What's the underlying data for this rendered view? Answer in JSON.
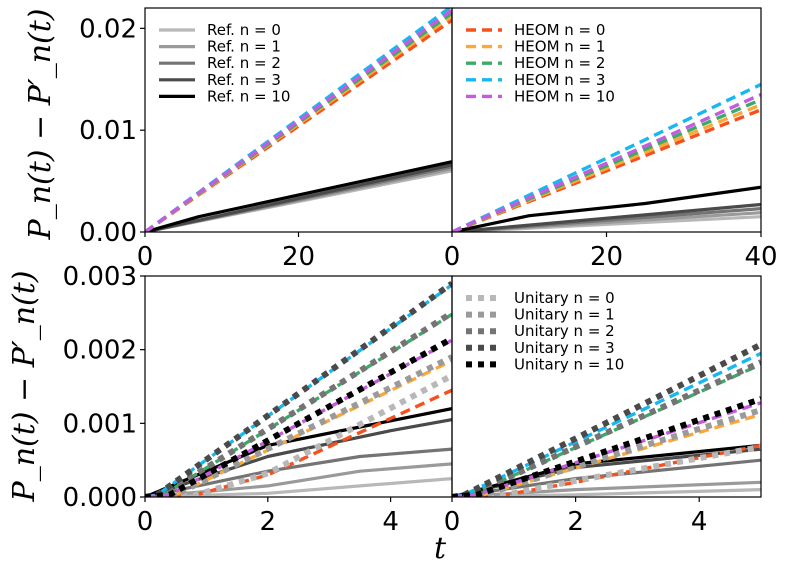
{
  "figure": {
    "ylabel": "P_n(t) − P′_n(t)",
    "xlabel": "t"
  },
  "legends": {
    "ref": [
      {
        "label": "Ref. n = 0",
        "color": "#b8b8b8"
      },
      {
        "label": "Ref. n = 1",
        "color": "#9a9a9a"
      },
      {
        "label": "Ref. n = 2",
        "color": "#747474"
      },
      {
        "label": "Ref. n = 3",
        "color": "#4a4a4a"
      },
      {
        "label": "Ref. n = 10",
        "color": "#000000"
      }
    ],
    "heom": [
      {
        "label": "HEOM n = 0",
        "color": "#f5511e"
      },
      {
        "label": "HEOM n = 1",
        "color": "#f9a83a"
      },
      {
        "label": "HEOM n = 2",
        "color": "#3daa6a"
      },
      {
        "label": "HEOM n = 3",
        "color": "#17b8f2"
      },
      {
        "label": "HEOM n = 10",
        "color": "#c35ddc"
      }
    ],
    "unitary": [
      {
        "label": "Unitary n = 0",
        "color": "#b8b8b8"
      },
      {
        "label": "Unitary n = 1",
        "color": "#9a9a9a"
      },
      {
        "label": "Unitary n = 2",
        "color": "#747474"
      },
      {
        "label": "Unitary n = 3",
        "color": "#4a4a4a"
      },
      {
        "label": "Unitary n = 10",
        "color": "#000000"
      }
    ]
  },
  "chart_data": [
    {
      "type": "line",
      "panel": "top-left",
      "xlim": [
        0,
        40
      ],
      "ylim": [
        0,
        0.022
      ],
      "xticks": [
        "0",
        "20"
      ],
      "yticks": [
        "0.00",
        "0.01",
        "0.02"
      ],
      "legend": "ref",
      "legend_position": "top-left",
      "series": [
        {
          "name": "Ref. n = 0",
          "style": "solid",
          "x": [
            0,
            40
          ],
          "y": [
            0,
            0.006
          ]
        },
        {
          "name": "Ref. n = 1",
          "style": "solid",
          "x": [
            0,
            40
          ],
          "y": [
            0,
            0.0062
          ]
        },
        {
          "name": "Ref. n = 2",
          "style": "solid",
          "x": [
            0,
            40
          ],
          "y": [
            0,
            0.0064
          ]
        },
        {
          "name": "Ref. n = 3",
          "style": "solid",
          "x": [
            0,
            40
          ],
          "y": [
            0,
            0.0066
          ]
        },
        {
          "name": "Ref. n = 10",
          "style": "solid",
          "x": [
            0,
            7,
            40
          ],
          "y": [
            0,
            0.0015,
            0.0069
          ]
        },
        {
          "name": "HEOM n = 0",
          "style": "dashed",
          "x": [
            0,
            40
          ],
          "y": [
            0,
            0.0208
          ]
        },
        {
          "name": "HEOM n = 1",
          "style": "dashed",
          "x": [
            0,
            40
          ],
          "y": [
            0,
            0.0212
          ]
        },
        {
          "name": "HEOM n = 2",
          "style": "dashed",
          "x": [
            0,
            40
          ],
          "y": [
            0,
            0.0215
          ]
        },
        {
          "name": "HEOM n = 3",
          "style": "dashed",
          "x": [
            0,
            40
          ],
          "y": [
            0,
            0.0222
          ]
        },
        {
          "name": "HEOM n = 10",
          "style": "dashed",
          "x": [
            0,
            40
          ],
          "y": [
            0,
            0.0218
          ]
        }
      ]
    },
    {
      "type": "line",
      "panel": "top-right",
      "xlim": [
        0,
        40
      ],
      "ylim": [
        0,
        0.022
      ],
      "xticks": [
        "0",
        "20",
        "40"
      ],
      "yticks": [],
      "legend": "heom",
      "legend_position": "top-left",
      "series": [
        {
          "name": "Ref. n = 0",
          "style": "solid",
          "x": [
            0,
            40
          ],
          "y": [
            0,
            0.0015
          ]
        },
        {
          "name": "Ref. n = 1",
          "style": "solid",
          "x": [
            0,
            40
          ],
          "y": [
            0,
            0.0019
          ]
        },
        {
          "name": "Ref. n = 2",
          "style": "solid",
          "x": [
            0,
            40
          ],
          "y": [
            0,
            0.0023
          ]
        },
        {
          "name": "Ref. n = 3",
          "style": "solid",
          "x": [
            0,
            40
          ],
          "y": [
            0,
            0.0027
          ]
        },
        {
          "name": "Ref. n = 10",
          "style": "solid",
          "x": [
            0,
            10,
            25,
            40
          ],
          "y": [
            0,
            0.0016,
            0.0028,
            0.0044
          ]
        },
        {
          "name": "HEOM n = 0",
          "style": "dashed",
          "x": [
            0,
            40
          ],
          "y": [
            0,
            0.012
          ]
        },
        {
          "name": "HEOM n = 1",
          "style": "dashed",
          "x": [
            0,
            40
          ],
          "y": [
            0,
            0.0125
          ]
        },
        {
          "name": "HEOM n = 2",
          "style": "dashed",
          "x": [
            0,
            40
          ],
          "y": [
            0,
            0.013
          ]
        },
        {
          "name": "HEOM n = 3",
          "style": "dashed",
          "x": [
            0,
            40
          ],
          "y": [
            0,
            0.0145
          ]
        },
        {
          "name": "HEOM n = 10",
          "style": "dashed",
          "x": [
            0,
            40
          ],
          "y": [
            0,
            0.0135
          ]
        }
      ]
    },
    {
      "type": "line",
      "panel": "bottom-left",
      "xlim": [
        0,
        5
      ],
      "ylim": [
        0,
        0.003
      ],
      "xticks": [
        "0",
        "2",
        "4"
      ],
      "yticks": [
        "0.000",
        "0.001",
        "0.002",
        "0.003"
      ],
      "legend": "none",
      "series": [
        {
          "name": "Ref. n = 0",
          "style": "solid",
          "x": [
            0,
            2,
            3.5,
            5
          ],
          "y": [
            0,
            5e-05,
            0.00015,
            0.00025
          ]
        },
        {
          "name": "Ref. n = 1",
          "style": "solid",
          "x": [
            0,
            2,
            3.5,
            5
          ],
          "y": [
            0,
            0.00015,
            0.00035,
            0.00045
          ]
        },
        {
          "name": "Ref. n = 2",
          "style": "solid",
          "x": [
            0,
            2,
            3.5,
            5
          ],
          "y": [
            0,
            0.00035,
            0.00055,
            0.00065
          ]
        },
        {
          "name": "Ref. n = 3",
          "style": "solid",
          "x": [
            0,
            2,
            4,
            5
          ],
          "y": [
            0,
            0.00055,
            0.0009,
            0.00105
          ]
        },
        {
          "name": "Ref. n = 10",
          "style": "solid",
          "x": [
            0,
            2,
            3.5,
            5
          ],
          "y": [
            0,
            0.0007,
            0.00095,
            0.0012
          ]
        },
        {
          "name": "HEOM n = 0",
          "style": "dashed",
          "x": [
            0,
            0.8,
            2,
            5
          ],
          "y": [
            0,
            2e-05,
            0.0003,
            0.00145
          ]
        },
        {
          "name": "HEOM n = 1",
          "style": "dashed",
          "x": [
            0,
            0.5,
            5
          ],
          "y": [
            0,
            3e-05,
            0.00185
          ]
        },
        {
          "name": "HEOM n = 2",
          "style": "dashed",
          "x": [
            0,
            0.3,
            5
          ],
          "y": [
            0,
            3e-05,
            0.00248
          ]
        },
        {
          "name": "HEOM n = 3",
          "style": "dashed",
          "x": [
            0,
            0.2,
            5
          ],
          "y": [
            0,
            3e-05,
            0.00288
          ]
        },
        {
          "name": "HEOM n = 10",
          "style": "dashed",
          "x": [
            0,
            0.4,
            5
          ],
          "y": [
            0,
            3e-05,
            0.00213
          ]
        },
        {
          "name": "Unitary n = 0",
          "style": "dotted",
          "x": [
            0,
            0.8,
            2,
            5
          ],
          "y": [
            0,
            2e-05,
            0.00032,
            0.00165
          ]
        },
        {
          "name": "Unitary n = 1",
          "style": "dotted",
          "x": [
            0,
            0.5,
            5
          ],
          "y": [
            0,
            3e-05,
            0.0019
          ]
        },
        {
          "name": "Unitary n = 2",
          "style": "dotted",
          "x": [
            0,
            0.3,
            5
          ],
          "y": [
            0,
            3e-05,
            0.0025
          ]
        },
        {
          "name": "Unitary n = 3",
          "style": "dotted",
          "x": [
            0,
            0.2,
            5
          ],
          "y": [
            0,
            3e-05,
            0.0029
          ]
        },
        {
          "name": "Unitary n = 10",
          "style": "dotted",
          "x": [
            0,
            0.4,
            5
          ],
          "y": [
            0,
            3e-05,
            0.00215
          ]
        }
      ]
    },
    {
      "type": "line",
      "panel": "bottom-right",
      "xlim": [
        0,
        5
      ],
      "ylim": [
        0,
        0.003
      ],
      "xticks": [
        "0",
        "2",
        "4"
      ],
      "yticks": [],
      "legend": "unitary",
      "legend_position": "top-left",
      "series": [
        {
          "name": "Ref. n = 0",
          "style": "solid",
          "x": [
            0,
            2,
            5
          ],
          "y": [
            0,
            3e-05,
            0.0001
          ]
        },
        {
          "name": "Ref. n = 1",
          "style": "solid",
          "x": [
            0,
            2,
            5
          ],
          "y": [
            0,
            0.0001,
            0.0002
          ]
        },
        {
          "name": "Ref. n = 2",
          "style": "solid",
          "x": [
            0,
            2,
            5
          ],
          "y": [
            0,
            0.00025,
            0.0005
          ]
        },
        {
          "name": "Ref. n = 3",
          "style": "solid",
          "x": [
            0,
            2,
            5
          ],
          "y": [
            0,
            0.0004,
            0.00065
          ]
        },
        {
          "name": "Ref. n = 10",
          "style": "solid",
          "x": [
            0,
            2,
            5
          ],
          "y": [
            0,
            0.00045,
            0.0007
          ]
        },
        {
          "name": "HEOM n = 0",
          "style": "dashed",
          "x": [
            0,
            0.8,
            2,
            5
          ],
          "y": [
            0,
            2e-05,
            0.0002,
            0.0007
          ]
        },
        {
          "name": "HEOM n = 1",
          "style": "dashed",
          "x": [
            0,
            0.5,
            5
          ],
          "y": [
            0,
            3e-05,
            0.00112
          ]
        },
        {
          "name": "HEOM n = 2",
          "style": "dashed",
          "x": [
            0,
            0.3,
            5
          ],
          "y": [
            0,
            3e-05,
            0.0018
          ]
        },
        {
          "name": "HEOM n = 3",
          "style": "dashed",
          "x": [
            0,
            0.2,
            5
          ],
          "y": [
            0,
            3e-05,
            0.00195
          ]
        },
        {
          "name": "HEOM n = 10",
          "style": "dashed",
          "x": [
            0,
            0.4,
            5
          ],
          "y": [
            0,
            3e-05,
            0.00128
          ]
        },
        {
          "name": "Unitary n = 0",
          "style": "dotted",
          "x": [
            0,
            0.8,
            2,
            5
          ],
          "y": [
            0,
            2e-05,
            0.00022,
            0.00068
          ]
        },
        {
          "name": "Unitary n = 1",
          "style": "dotted",
          "x": [
            0,
            0.5,
            5
          ],
          "y": [
            0,
            3e-05,
            0.00118
          ]
        },
        {
          "name": "Unitary n = 2",
          "style": "dotted",
          "x": [
            0,
            0.3,
            5
          ],
          "y": [
            0,
            3e-05,
            0.00183
          ]
        },
        {
          "name": "Unitary n = 3",
          "style": "dotted",
          "x": [
            0,
            0.2,
            5
          ],
          "y": [
            0,
            3e-05,
            0.00207
          ]
        },
        {
          "name": "Unitary n = 10",
          "style": "dotted",
          "x": [
            0,
            0.4,
            5
          ],
          "y": [
            0,
            3e-05,
            0.00133
          ]
        }
      ]
    }
  ]
}
